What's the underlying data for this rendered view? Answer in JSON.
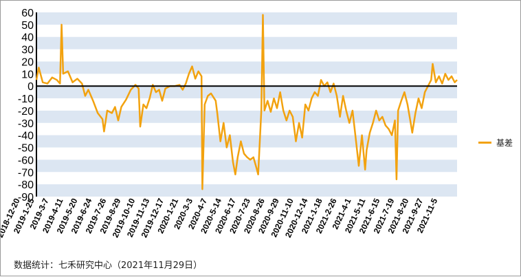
{
  "chart_data": {
    "type": "line",
    "title": "",
    "xlabel": "",
    "ylabel": "",
    "ylim": [
      -90,
      60
    ],
    "yticks": [
      60,
      50,
      40,
      30,
      20,
      10,
      0,
      -10,
      -20,
      -30,
      -40,
      -50,
      -60,
      -70,
      -80,
      -90
    ],
    "x_tick_labels": [
      "2018-12-20",
      "2019-1-25",
      "2019-3-7",
      "2019-4-11",
      "2019-5-20",
      "2019-6-24",
      "2019-7-26",
      "2019-8-29",
      "2019-10-10",
      "2019-11-13",
      "2019-12-17",
      "2020-1-21",
      "2020-3-3",
      "2020-4-7",
      "2020-5-14",
      "2020-6-17",
      "2020-7-23",
      "2020-8-26",
      "2020-9-29",
      "2020-11-10",
      "2020-12-14",
      "2021-1-18",
      "2021-2-26",
      "2021-4-1",
      "2021-5-11",
      "2021-6-15",
      "2021-7-19",
      "2021-8-20",
      "2021-9-27",
      "2021-11-5"
    ],
    "grid": "alternating horizontal bands",
    "legend_position": "right",
    "colors": {
      "series": "#F2A20F",
      "band": "#DCE6F2",
      "zero_line": "#000000"
    },
    "series": [
      {
        "name": "基差",
        "x_range": [
          "2018-12-20",
          "2021-11-29"
        ],
        "keypoints": [
          [
            0,
            5
          ],
          [
            3,
            15
          ],
          [
            8,
            3
          ],
          [
            14,
            2
          ],
          [
            20,
            7
          ],
          [
            26,
            5
          ],
          [
            30,
            2
          ],
          [
            32,
            50
          ],
          [
            34,
            10
          ],
          [
            40,
            12
          ],
          [
            46,
            3
          ],
          [
            52,
            6
          ],
          [
            58,
            2
          ],
          [
            62,
            -8
          ],
          [
            66,
            -3
          ],
          [
            72,
            -12
          ],
          [
            78,
            -22
          ],
          [
            84,
            -27
          ],
          [
            86,
            -37
          ],
          [
            90,
            -20
          ],
          [
            96,
            -22
          ],
          [
            100,
            -17
          ],
          [
            104,
            -28
          ],
          [
            108,
            -17
          ],
          [
            114,
            -11
          ],
          [
            120,
            -3
          ],
          [
            126,
            1
          ],
          [
            130,
            -2
          ],
          [
            132,
            -33
          ],
          [
            136,
            -15
          ],
          [
            140,
            -18
          ],
          [
            144,
            -10
          ],
          [
            148,
            1
          ],
          [
            152,
            -5
          ],
          [
            156,
            -3
          ],
          [
            160,
            -12
          ],
          [
            164,
            -2
          ],
          [
            170,
            0
          ],
          [
            176,
            0
          ],
          [
            182,
            1
          ],
          [
            186,
            -3
          ],
          [
            190,
            2
          ],
          [
            194,
            10
          ],
          [
            198,
            16
          ],
          [
            202,
            6
          ],
          [
            206,
            12
          ],
          [
            210,
            8
          ],
          [
            211,
            -84
          ],
          [
            214,
            -15
          ],
          [
            218,
            -8
          ],
          [
            222,
            -6
          ],
          [
            228,
            -12
          ],
          [
            230,
            -22
          ],
          [
            234,
            -45
          ],
          [
            238,
            -30
          ],
          [
            242,
            -50
          ],
          [
            246,
            -40
          ],
          [
            250,
            -62
          ],
          [
            253,
            -72
          ],
          [
            256,
            -58
          ],
          [
            260,
            -45
          ],
          [
            264,
            -55
          ],
          [
            268,
            -58
          ],
          [
            272,
            -60
          ],
          [
            276,
            -58
          ],
          [
            280,
            -67
          ],
          [
            282,
            -72
          ],
          [
            286,
            -20
          ],
          [
            288,
            58
          ],
          [
            290,
            -20
          ],
          [
            294,
            -12
          ],
          [
            298,
            -21
          ],
          [
            302,
            -10
          ],
          [
            306,
            -18
          ],
          [
            310,
            -5
          ],
          [
            314,
            -20
          ],
          [
            318,
            -28
          ],
          [
            322,
            -20
          ],
          [
            326,
            -25
          ],
          [
            330,
            -45
          ],
          [
            334,
            -30
          ],
          [
            338,
            -42
          ],
          [
            342,
            -15
          ],
          [
            346,
            -20
          ],
          [
            350,
            -10
          ],
          [
            354,
            -5
          ],
          [
            358,
            -8
          ],
          [
            362,
            5
          ],
          [
            366,
            0
          ],
          [
            370,
            3
          ],
          [
            374,
            -5
          ],
          [
            378,
            2
          ],
          [
            382,
            -8
          ],
          [
            386,
            -25
          ],
          [
            390,
            -8
          ],
          [
            394,
            -20
          ],
          [
            398,
            -30
          ],
          [
            402,
            -20
          ],
          [
            406,
            -42
          ],
          [
            410,
            -65
          ],
          [
            414,
            -40
          ],
          [
            418,
            -68
          ],
          [
            420,
            -52
          ],
          [
            424,
            -38
          ],
          [
            428,
            -30
          ],
          [
            432,
            -20
          ],
          [
            436,
            -28
          ],
          [
            440,
            -25
          ],
          [
            444,
            -32
          ],
          [
            448,
            -35
          ],
          [
            452,
            -40
          ],
          [
            456,
            -28
          ],
          [
            458,
            -76
          ],
          [
            460,
            -20
          ],
          [
            464,
            -12
          ],
          [
            468,
            -5
          ],
          [
            472,
            -15
          ],
          [
            476,
            -30
          ],
          [
            478,
            -38
          ],
          [
            482,
            -22
          ],
          [
            486,
            -10
          ],
          [
            490,
            -18
          ],
          [
            494,
            -5
          ],
          [
            498,
            0
          ],
          [
            502,
            5
          ],
          [
            504,
            18
          ],
          [
            508,
            3
          ],
          [
            512,
            8
          ],
          [
            516,
            2
          ],
          [
            520,
            10
          ],
          [
            524,
            5
          ],
          [
            528,
            8
          ],
          [
            532,
            3
          ],
          [
            535,
            5
          ]
        ]
      }
    ]
  },
  "legend": {
    "label": "基差"
  },
  "footer": {
    "source": "数据统计：七禾研究中心（2021年11月29日）"
  }
}
